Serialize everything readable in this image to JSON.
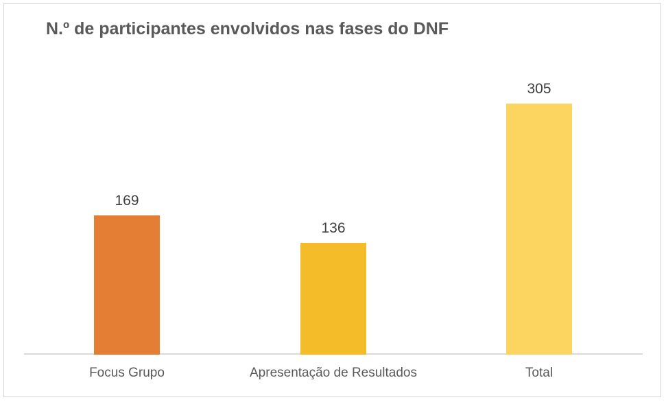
{
  "chart": {
    "title": "N.º de participantes envolvidos nas fases do DNF"
  },
  "chart_data": {
    "type": "bar",
    "title": "N.º de participantes envolvidos nas fases do DNF",
    "categories": [
      "Focus Grupo",
      "Apresentação de Resultados",
      "Total"
    ],
    "values": [
      169,
      136,
      305
    ],
    "data_labels": [
      "169",
      "136",
      "305"
    ],
    "bar_colors": [
      "#E57E35",
      "#F5BC29",
      "#FBD560"
    ],
    "xlabel": "",
    "ylabel": "",
    "ylim": [
      0,
      350
    ],
    "grid": false,
    "legend": "none"
  },
  "colors": {
    "title_text": "#595959",
    "data_label_text": "#404040",
    "category_label_text": "#595959",
    "axis_line": "#D9D9D9",
    "frame_border": "#D4D4D4",
    "background": "#FFFFFF"
  }
}
